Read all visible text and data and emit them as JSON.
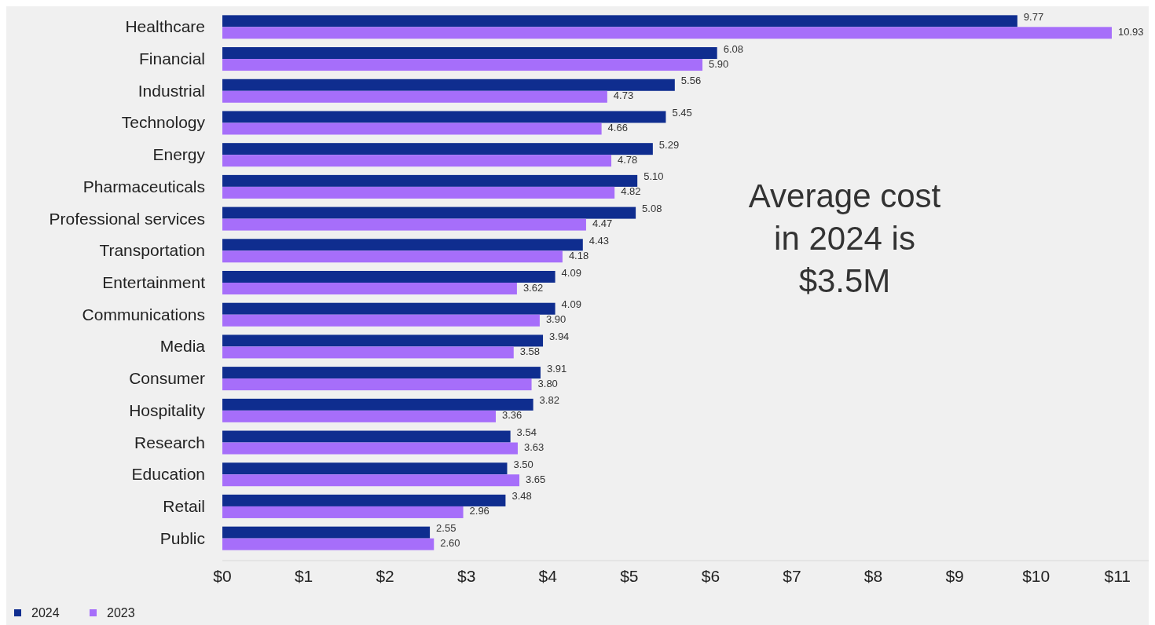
{
  "chart_data": {
    "type": "bar",
    "orientation": "horizontal",
    "categories": [
      "Healthcare",
      "Financial",
      "Industrial",
      "Technology",
      "Energy",
      "Pharmaceuticals",
      "Professional services",
      "Transportation",
      "Entertainment",
      "Communications",
      "Media",
      "Consumer",
      "Hospitality",
      "Research",
      "Education",
      "Retail",
      "Public"
    ],
    "series": [
      {
        "name": "2024",
        "color": "#0f2d8f",
        "values": [
          9.77,
          6.08,
          5.56,
          5.45,
          5.29,
          5.1,
          5.08,
          4.43,
          4.09,
          4.09,
          3.94,
          3.91,
          3.82,
          3.54,
          3.5,
          3.48,
          2.55
        ],
        "value_labels": [
          "9.77",
          "6.08",
          "5.56",
          "5.45",
          "5.29",
          "5.10",
          "5.08",
          "4.43",
          "4.09",
          "4.09",
          "3.94",
          "3.91",
          "3.82",
          "3.54",
          "3.50",
          "3.48",
          "2.55"
        ]
      },
      {
        "name": "2023",
        "color": "#a66efa",
        "values": [
          10.93,
          5.9,
          4.73,
          4.66,
          4.78,
          4.82,
          4.47,
          4.18,
          3.62,
          3.9,
          3.58,
          3.8,
          3.36,
          3.63,
          3.65,
          2.96,
          2.6
        ],
        "value_labels": [
          "10.93",
          "5.90",
          "4.73",
          "4.66",
          "4.78",
          "4.82",
          "4.47",
          "4.18",
          "3.62",
          "3.90",
          "3.58",
          "3.80",
          "3.36",
          "3.63",
          "3.65",
          "2.96",
          "2.60"
        ]
      }
    ],
    "xlim": [
      0,
      11.5
    ],
    "xticks": [
      {
        "value": 0,
        "label": "$0"
      },
      {
        "value": 1,
        "label": "$1"
      },
      {
        "value": 2,
        "label": "$2"
      },
      {
        "value": 3,
        "label": "$3"
      },
      {
        "value": 4,
        "label": "$4"
      },
      {
        "value": 5,
        "label": "$5"
      },
      {
        "value": 6,
        "label": "$6"
      },
      {
        "value": 7,
        "label": "$7"
      },
      {
        "value": 8,
        "label": "$8"
      },
      {
        "value": 9,
        "label": "$9"
      },
      {
        "value": 10,
        "label": "$10"
      },
      {
        "value": 11,
        "label": "$11"
      }
    ],
    "annotations": [
      "Average cost in 2024 is $3.5M"
    ],
    "legend": "bottom left",
    "grid": false
  }
}
